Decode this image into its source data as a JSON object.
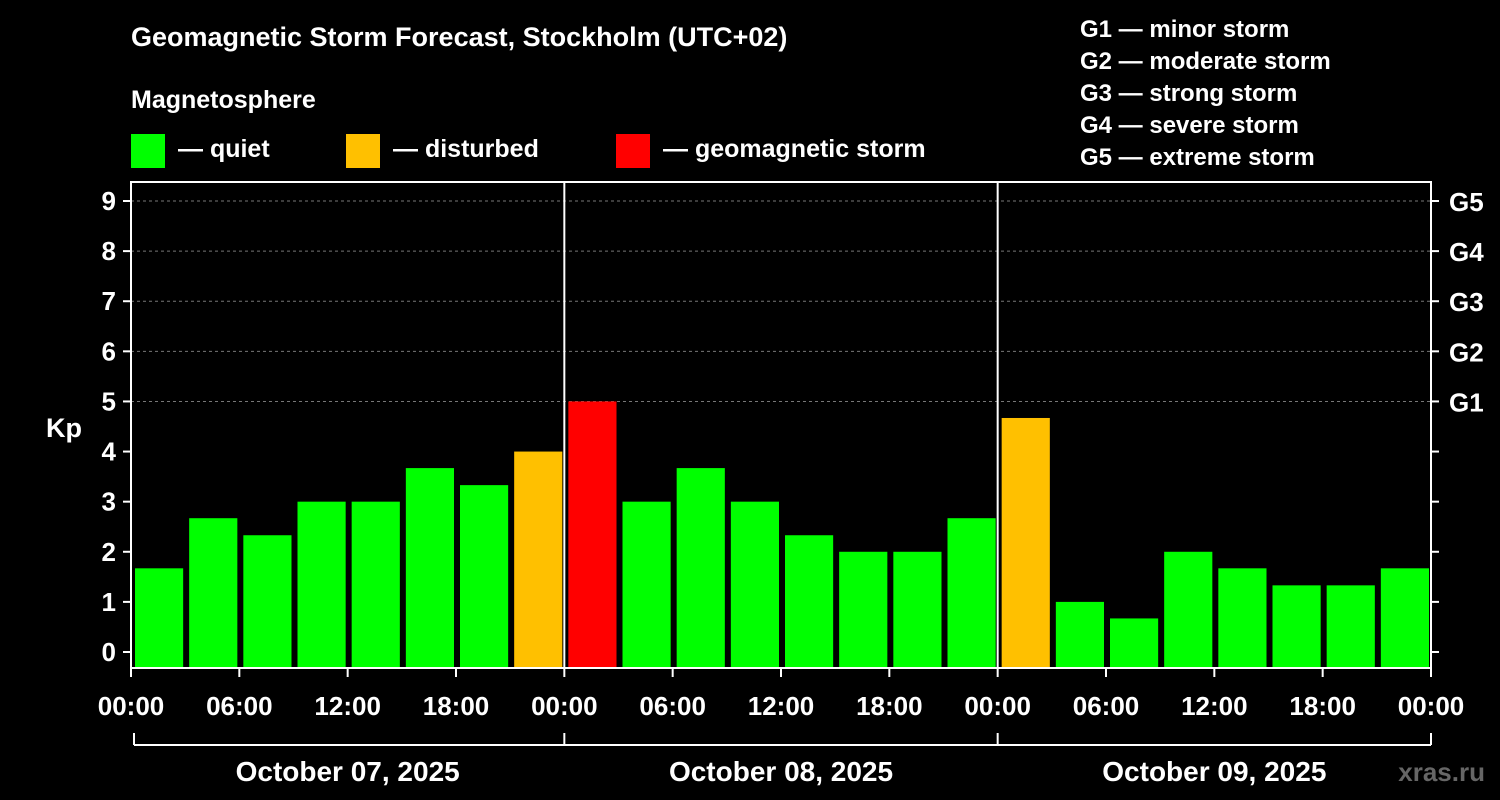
{
  "title": "Geomagnetic Storm Forecast, Stockholm (UTC+02)",
  "subtitle": "Magnetosphere",
  "legend": [
    {
      "label": "— quiet",
      "color": "#00ff00"
    },
    {
      "label": "— disturbed",
      "color": "#ffc000"
    },
    {
      "label": "— geomagnetic storm",
      "color": "#ff0000"
    }
  ],
  "g_scale": [
    "G1 — minor storm",
    "G2 — moderate storm",
    "G3 — strong storm",
    "G4 — severe storm",
    "G5 — extreme storm"
  ],
  "watermark": "xras.ru",
  "chart_data": {
    "type": "bar",
    "title": "Geomagnetic Storm Forecast, Stockholm (UTC+02)",
    "ylabel": "Kp",
    "ylim": [
      0,
      9
    ],
    "y_ticks": [
      "0",
      "1",
      "2",
      "3",
      "4",
      "5",
      "6",
      "7",
      "8",
      "9"
    ],
    "right_ticks": [
      {
        "kp": 5,
        "label": "G1"
      },
      {
        "kp": 6,
        "label": "G2"
      },
      {
        "kp": 7,
        "label": "G3"
      },
      {
        "kp": 8,
        "label": "G4"
      },
      {
        "kp": 9,
        "label": "G5"
      }
    ],
    "x_tick_labels": [
      "00:00",
      "06:00",
      "12:00",
      "18:00",
      "00:00",
      "06:00",
      "12:00",
      "18:00",
      "00:00",
      "06:00",
      "12:00",
      "18:00",
      "00:00"
    ],
    "days": [
      "October 07, 2025",
      "October 08, 2025",
      "October 09, 2025"
    ],
    "interval_hours": 3,
    "values": [
      1.67,
      2.67,
      2.33,
      3.0,
      3.0,
      3.67,
      3.33,
      4.0,
      5.0,
      3.0,
      3.67,
      3.0,
      2.33,
      2.0,
      2.0,
      2.67,
      4.67,
      1.0,
      0.67,
      2.0,
      1.67,
      1.33,
      1.33,
      1.67
    ],
    "categories": [
      "quiet",
      "quiet",
      "quiet",
      "quiet",
      "quiet",
      "quiet",
      "quiet",
      "disturbed",
      "storm",
      "quiet",
      "quiet",
      "quiet",
      "quiet",
      "quiet",
      "quiet",
      "quiet",
      "disturbed",
      "quiet",
      "quiet",
      "quiet",
      "quiet",
      "quiet",
      "quiet",
      "quiet"
    ],
    "colors": {
      "quiet": "#00ff00",
      "disturbed": "#ffc000",
      "storm": "#ff0000"
    },
    "grid": true
  }
}
